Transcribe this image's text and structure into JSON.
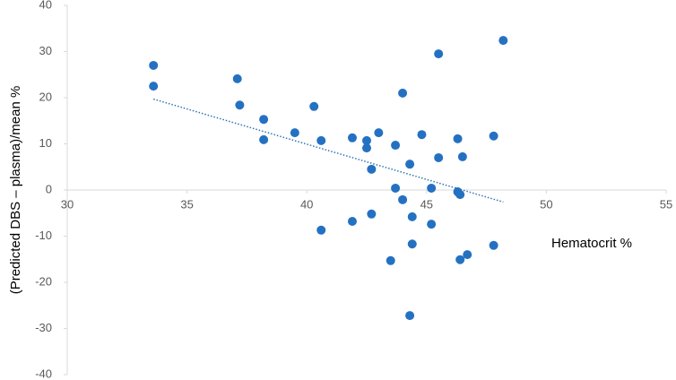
{
  "chart_data": {
    "type": "scatter",
    "x_label": "Hematocrit %",
    "y_label": "(Predicted DBS – plasma)/mean %",
    "color": "#2471c2",
    "x": [
      33.6,
      33.6,
      37.1,
      37.2,
      38.2,
      38.2,
      39.5,
      40.3,
      40.6,
      41.9,
      42.5,
      42.5,
      43.0,
      42.7,
      44.0,
      43.7,
      44.3,
      44.8,
      45.5,
      45.5,
      46.3,
      46.5,
      47.8,
      48.2,
      43.7,
      45.2,
      44.0,
      46.3,
      46.4,
      41.9,
      42.7,
      44.4,
      45.2,
      40.6,
      44.4,
      47.8,
      46.7,
      46.4,
      43.5,
      44.3
    ],
    "values": [
      27.0,
      22.5,
      24.1,
      18.4,
      15.3,
      10.9,
      12.4,
      18.1,
      10.7,
      11.3,
      10.7,
      9.1,
      12.4,
      4.5,
      21.0,
      9.7,
      5.6,
      12.0,
      29.5,
      7.0,
      11.1,
      7.2,
      11.7,
      32.4,
      0.4,
      0.4,
      -2.1,
      -0.4,
      -1.0,
      -6.8,
      -5.2,
      -5.8,
      -7.4,
      -8.7,
      -11.7,
      -12.0,
      -14.0,
      -15.1,
      -15.3,
      -27.2
    ],
    "trendline": {
      "x": [
        33.6,
        48.2
      ],
      "values": [
        19.7,
        -2.6
      ],
      "color": "#2e75b6"
    },
    "xlim": [
      30,
      55
    ],
    "xticks": [
      30,
      35,
      40,
      45,
      50,
      55
    ],
    "ylim": [
      -40,
      40
    ],
    "yticks": [
      -40,
      -30,
      -20,
      -10,
      0,
      10,
      20,
      30,
      40
    ]
  }
}
